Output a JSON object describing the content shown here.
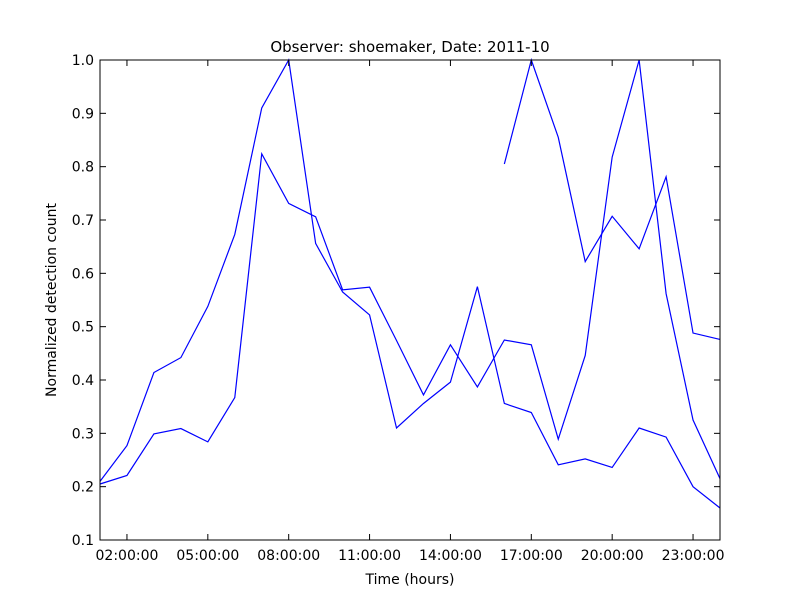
{
  "chart_data": {
    "type": "line",
    "title": "Observer: shoemaker, Date: 2011-10",
    "xlabel": "Time (hours)",
    "ylabel": "Normalized detection count",
    "x_unit": "hours",
    "xlim": [
      1,
      24
    ],
    "ylim": [
      0.1,
      1.0
    ],
    "x_ticks": [
      2,
      5,
      8,
      11,
      14,
      17,
      20,
      23
    ],
    "x_tick_labels": [
      "02:00:00",
      "05:00:00",
      "08:00:00",
      "11:00:00",
      "14:00:00",
      "17:00:00",
      "20:00:00",
      "23:00:00"
    ],
    "y_ticks": [
      0.1,
      0.2,
      0.3,
      0.4,
      0.5,
      0.6,
      0.7,
      0.8,
      0.9,
      1.0
    ],
    "y_tick_labels": [
      "0.1",
      "0.2",
      "0.3",
      "0.4",
      "0.5",
      "0.6",
      "0.7",
      "0.8",
      "0.9",
      "1.0"
    ],
    "grid": false,
    "line_color": "#0000ff",
    "series": [
      {
        "x": [
          1,
          2,
          3,
          4,
          5,
          6,
          7,
          8,
          9,
          10,
          11,
          12,
          13,
          14,
          15,
          16,
          17,
          18,
          19,
          20,
          21,
          22,
          23,
          24
        ],
        "values": [
          0.21,
          0.277,
          0.414,
          0.442,
          0.538,
          0.673,
          0.91,
          1.0,
          0.656,
          0.565,
          0.522,
          0.31,
          0.356,
          0.396,
          0.575,
          0.356,
          0.339,
          0.241,
          0.252,
          0.236,
          0.31,
          0.293,
          0.2,
          0.16
        ]
      },
      {
        "x": [
          1,
          2,
          3,
          4,
          5,
          6,
          7,
          8,
          9,
          10,
          11,
          12,
          13,
          14,
          15,
          16,
          17,
          18,
          19,
          20,
          21,
          22,
          23,
          24
        ],
        "values": [
          0.205,
          0.221,
          0.299,
          0.309,
          0.284,
          0.367,
          0.824,
          0.731,
          0.706,
          0.569,
          0.574,
          0.474,
          0.372,
          0.466,
          0.387,
          0.475,
          0.466,
          0.289,
          0.446,
          0.818,
          1.0,
          0.562,
          0.325,
          0.215
        ]
      },
      {
        "x": [
          16,
          17,
          18,
          19,
          20,
          21,
          22,
          23,
          24
        ],
        "values": [
          0.805,
          1.0,
          0.855,
          0.622,
          0.707,
          0.646,
          0.781,
          0.488,
          0.476
        ]
      }
    ]
  }
}
